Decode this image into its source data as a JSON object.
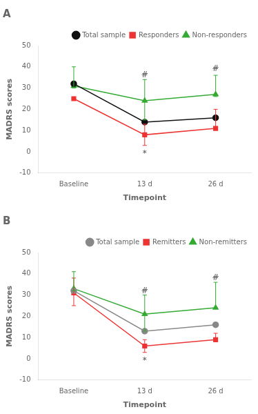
{
  "chart_data": [
    {
      "type": "line",
      "title": "A",
      "x_label": "Timepoint",
      "y_label": "MADRS scores",
      "categories": [
        "Baseline",
        "13 d",
        "26 d"
      ],
      "series": [
        {
          "name": "Total sample",
          "color": "#111111",
          "marker": "circle",
          "values": [
            32,
            14,
            16
          ],
          "err_low": [
            0,
            0,
            0
          ],
          "err_high": [
            0,
            0,
            0
          ]
        },
        {
          "name": "Responders",
          "color": "#ee3333",
          "marker": "square",
          "values": [
            25,
            8,
            11
          ],
          "err_low": [
            0,
            5,
            0
          ],
          "err_high": [
            0,
            5,
            9
          ]
        },
        {
          "name": "Non-responders",
          "color": "#33aa33",
          "marker": "triangle",
          "values": [
            31,
            24,
            27
          ],
          "err_low": [
            1,
            9,
            1
          ],
          "err_high": [
            9,
            10,
            9
          ]
        }
      ],
      "annotations": [
        {
          "text": "#",
          "x": "13 d",
          "y": 35
        },
        {
          "text": "#",
          "x": "26 d",
          "y": 38
        },
        {
          "text": "*",
          "x": "13 d",
          "y": -2
        }
      ],
      "ylim": [
        -10,
        50
      ],
      "yticks": [
        -10,
        0,
        10,
        20,
        30,
        40,
        50
      ],
      "grid": false,
      "legend": "upper right"
    },
    {
      "type": "line",
      "title": "B",
      "x_label": "Timepoint",
      "y_label": "MADRS scores",
      "categories": [
        "Baseline",
        "13 d",
        "26 d"
      ],
      "series": [
        {
          "name": "Total sample",
          "color": "#888888",
          "marker": "circle",
          "values": [
            32,
            13,
            16
          ],
          "err_low": [
            0,
            0,
            0
          ],
          "err_high": [
            0,
            0,
            0
          ]
        },
        {
          "name": "Remitters",
          "color": "#ee3333",
          "marker": "square",
          "values": [
            31,
            6,
            9
          ],
          "err_low": [
            6,
            3,
            1
          ],
          "err_high": [
            7,
            3,
            3
          ]
        },
        {
          "name": "Non-remitters",
          "color": "#33aa33",
          "marker": "triangle",
          "values": [
            33,
            21,
            24
          ],
          "err_low": [
            1,
            8,
            0
          ],
          "err_high": [
            8,
            9,
            12
          ]
        }
      ],
      "annotations": [
        {
          "text": "#",
          "x": "13 d",
          "y": 31
        },
        {
          "text": "#",
          "x": "26 d",
          "y": 37
        },
        {
          "text": "*",
          "x": "13 d",
          "y": -2
        }
      ],
      "ylim": [
        -10,
        50
      ],
      "yticks": [
        -10,
        0,
        10,
        20,
        30,
        40,
        50
      ],
      "grid": false,
      "legend": "upper right"
    }
  ]
}
